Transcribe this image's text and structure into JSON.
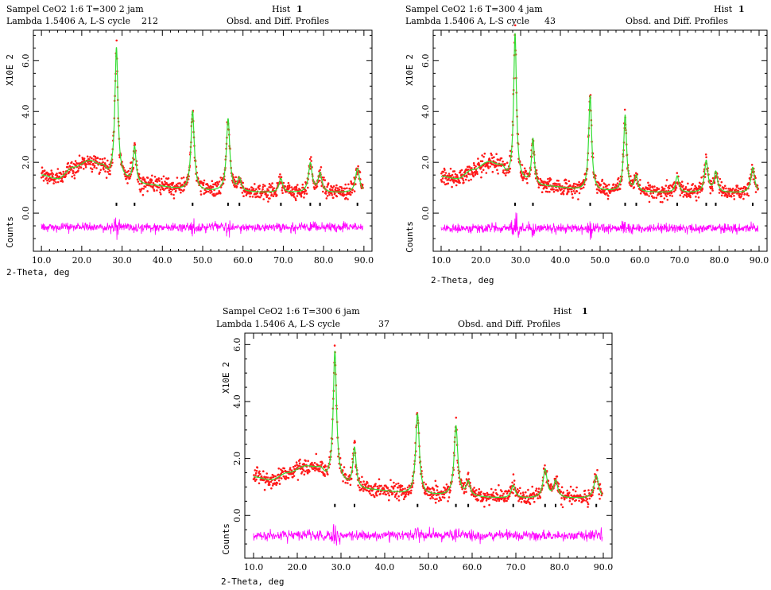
{
  "colors": {
    "observed": "#ff1a1a",
    "calculated": "#33dd33",
    "difference": "#ff00ff",
    "reflection_marks": "#000000",
    "frame": "#000000"
  },
  "chart_data": [
    {
      "type": "scatter",
      "header": {
        "sample": "Sampel CeO2 1:6 T=300 2 jam",
        "hist_label": "Hist",
        "hist_value": "1",
        "lambda_cycle": "Lambda 1.5406 A, L-S cycle",
        "cycle_value": "212",
        "profiles": "Obsd. and Diff. Profiles"
      },
      "xlabel": "2-Theta, deg",
      "ylabel_scale": "X10E  2",
      "ylabel_counts": "Counts",
      "xlim": [
        8.0,
        92.0
      ],
      "ylim": [
        -1.5,
        7.2
      ],
      "x_ticks": [
        "10.0",
        "20.0",
        "30.0",
        "40.0",
        "50.0",
        "60.0",
        "70.0",
        "80.0",
        "90.0"
      ],
      "y_ticks": [
        "0.0",
        "2.0",
        "4.0",
        "6.0"
      ],
      "background": [
        [
          10,
          1.5
        ],
        [
          14,
          1.35
        ],
        [
          18,
          1.8
        ],
        [
          22,
          2.05
        ],
        [
          25,
          1.85
        ],
        [
          27,
          1.45
        ],
        [
          35,
          1.1
        ],
        [
          50,
          0.85
        ],
        [
          70,
          0.8
        ],
        [
          90,
          0.8
        ]
      ],
      "peaks": [
        {
          "x": 28.6,
          "height": 5.1,
          "width": 0.45
        },
        {
          "x": 33.1,
          "height": 1.45,
          "width": 0.45
        },
        {
          "x": 47.5,
          "height": 3.15,
          "width": 0.5
        },
        {
          "x": 56.3,
          "height": 2.85,
          "width": 0.5
        },
        {
          "x": 59.1,
          "height": 0.5,
          "width": 0.5
        },
        {
          "x": 69.4,
          "height": 0.55,
          "width": 0.55
        },
        {
          "x": 76.7,
          "height": 1.15,
          "width": 0.55
        },
        {
          "x": 79.1,
          "height": 0.75,
          "width": 0.55
        },
        {
          "x": 88.4,
          "height": 0.95,
          "width": 0.6
        }
      ],
      "reflections": [
        28.6,
        33.1,
        47.5,
        56.3,
        59.1,
        69.4,
        76.7,
        79.1,
        88.4
      ],
      "tick_mark_y": 0.35,
      "difference_level": -0.55,
      "noise": 0.12
    },
    {
      "type": "scatter",
      "header": {
        "sample": "Sampel CeO2 1:6 T=300  4 jam",
        "hist_label": "Hist",
        "hist_value": "1",
        "lambda_cycle": "Lambda 1.5406 A, L-S cycle",
        "cycle_value": "43",
        "profiles": "Obsd. and Diff. Profiles"
      },
      "xlabel": "2-Theta, deg",
      "ylabel_scale": "X10E  2",
      "ylabel_counts": "Counts",
      "xlim": [
        8.0,
        92.0
      ],
      "ylim": [
        -1.5,
        7.2
      ],
      "x_ticks": [
        "10.0",
        "20.0",
        "30.0",
        "40.0",
        "50.0",
        "60.0",
        "70.0",
        "80.0",
        "90.0"
      ],
      "y_ticks": [
        "0.0",
        "2.0",
        "4.0",
        "6.0"
      ],
      "background": [
        [
          10,
          1.45
        ],
        [
          14,
          1.35
        ],
        [
          18,
          1.7
        ],
        [
          22,
          2.0
        ],
        [
          25,
          1.85
        ],
        [
          27,
          1.4
        ],
        [
          35,
          1.05
        ],
        [
          50,
          0.85
        ],
        [
          70,
          0.8
        ],
        [
          90,
          0.8
        ]
      ],
      "peaks": [
        {
          "x": 28.6,
          "height": 5.7,
          "width": 0.42
        },
        {
          "x": 33.1,
          "height": 1.8,
          "width": 0.42
        },
        {
          "x": 47.5,
          "height": 3.75,
          "width": 0.45
        },
        {
          "x": 56.3,
          "height": 3.0,
          "width": 0.45
        },
        {
          "x": 59.1,
          "height": 0.6,
          "width": 0.45
        },
        {
          "x": 69.4,
          "height": 0.65,
          "width": 0.5
        },
        {
          "x": 76.7,
          "height": 1.25,
          "width": 0.5
        },
        {
          "x": 79.1,
          "height": 0.8,
          "width": 0.5
        },
        {
          "x": 88.4,
          "height": 1.0,
          "width": 0.55
        }
      ],
      "reflections": [
        28.6,
        33.1,
        47.5,
        56.3,
        59.1,
        69.4,
        76.7,
        79.1,
        88.4
      ],
      "tick_mark_y": 0.35,
      "difference_level": -0.6,
      "noise": 0.12
    },
    {
      "type": "scatter",
      "header": {
        "sample": "Sampel CeO2 1:6 T=300  6 jam",
        "hist_label": "Hist",
        "hist_value": "1",
        "lambda_cycle": "Lambda 1.5406 A, L-S cycle",
        "cycle_value": "37",
        "profiles": "Obsd. and Diff. Profiles"
      },
      "xlabel": "2-Theta, deg",
      "ylabel_scale": "X10E  2",
      "ylabel_counts": "Counts",
      "xlim": [
        8.0,
        92.0
      ],
      "ylim": [
        -1.5,
        6.4
      ],
      "x_ticks": [
        "10.0",
        "20.0",
        "30.0",
        "40.0",
        "50.0",
        "60.0",
        "70.0",
        "80.0",
        "90.0"
      ],
      "y_ticks": [
        "0.0",
        "2.0",
        "4.0",
        "6.0"
      ],
      "background": [
        [
          10,
          1.35
        ],
        [
          14,
          1.25
        ],
        [
          18,
          1.5
        ],
        [
          22,
          1.72
        ],
        [
          25,
          1.65
        ],
        [
          27,
          1.3
        ],
        [
          35,
          0.9
        ],
        [
          50,
          0.7
        ],
        [
          70,
          0.6
        ],
        [
          90,
          0.6
        ]
      ],
      "peaks": [
        {
          "x": 28.6,
          "height": 4.5,
          "width": 0.45
        },
        {
          "x": 33.1,
          "height": 1.4,
          "width": 0.45
        },
        {
          "x": 47.5,
          "height": 2.85,
          "width": 0.5
        },
        {
          "x": 56.3,
          "height": 2.45,
          "width": 0.5
        },
        {
          "x": 59.1,
          "height": 0.5,
          "width": 0.5
        },
        {
          "x": 69.4,
          "height": 0.45,
          "width": 0.55
        },
        {
          "x": 76.7,
          "height": 1.0,
          "width": 0.55
        },
        {
          "x": 79.1,
          "height": 0.6,
          "width": 0.55
        },
        {
          "x": 88.4,
          "height": 0.8,
          "width": 0.6
        }
      ],
      "reflections": [
        28.6,
        33.1,
        47.5,
        56.3,
        59.1,
        69.4,
        76.7,
        79.1,
        88.4
      ],
      "tick_mark_y": 0.35,
      "difference_level": -0.7,
      "noise": 0.11
    }
  ]
}
